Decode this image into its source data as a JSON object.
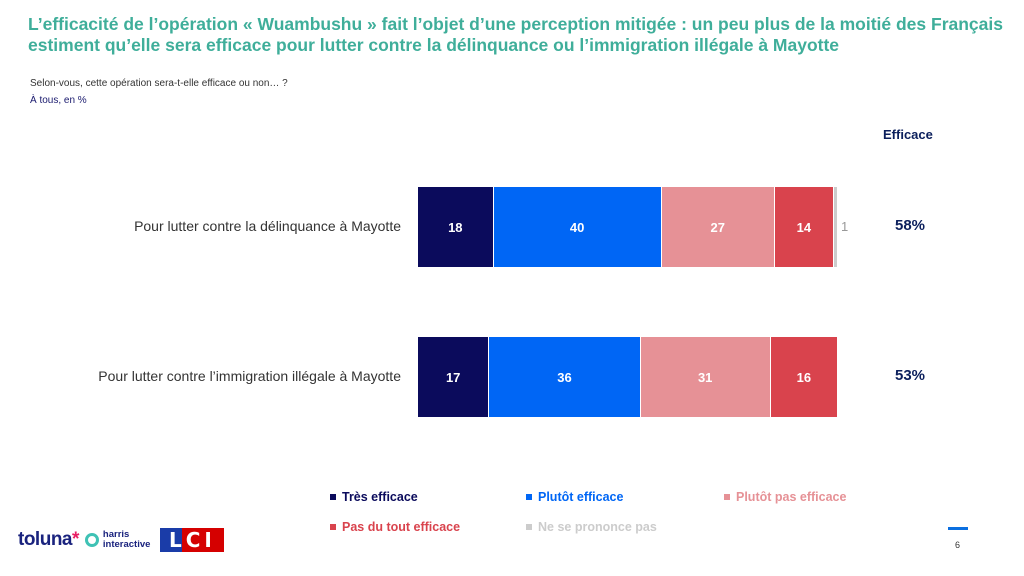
{
  "title": "L’efficacité de l’opération « Wuambushu » fait l’objet d’une perception mitigée : un peu plus de la moitié des Français estiment qu’elle sera efficace pour lutter contre la délinquance ou l’immigration illégale à Mayotte",
  "question": "Selon-vous, cette opération sera-t-elle efficace ou non… ?",
  "base": "À tous, en %",
  "page_number": "6",
  "logos": {
    "toluna": "toluna",
    "toluna_star": "*",
    "harris_line1": "harris",
    "harris_line2": "interactive",
    "lci": "LCI"
  },
  "colors": {
    "tres_efficace": "#0b0b5c",
    "plutot_efficace": "#0066f5",
    "plutot_pas_efficace": "#e69196",
    "pas_du_tout_efficace": "#d9434d",
    "ne_se_prononce_pas": "#cccccc",
    "title": "#3fae9a"
  },
  "chart_data": {
    "type": "bar",
    "orientation": "horizontal",
    "stacked": true,
    "categories": [
      "Pour lutter contre la délinquance à Mayotte",
      "Pour lutter contre l’immigration illégale à Mayotte"
    ],
    "series": [
      {
        "name": "Très efficace",
        "values": [
          18,
          17
        ]
      },
      {
        "name": "Plutôt efficace",
        "values": [
          40,
          36
        ]
      },
      {
        "name": "Plutôt pas efficace",
        "values": [
          27,
          31
        ]
      },
      {
        "name": "Pas du tout efficace",
        "values": [
          14,
          16
        ]
      },
      {
        "name": "Ne se prononce pas",
        "values": [
          1,
          0
        ]
      }
    ],
    "extra_column": {
      "header": "Efficace",
      "values": [
        "58%",
        "53%"
      ]
    },
    "legend_position": "bottom",
    "xlim": [
      0,
      100
    ],
    "grid": false
  }
}
